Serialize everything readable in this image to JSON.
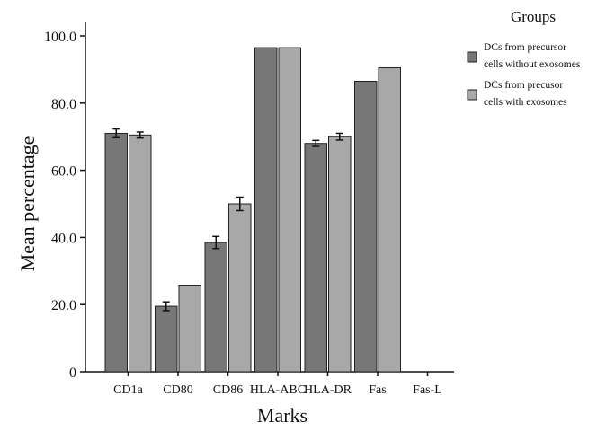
{
  "chart_data": {
    "type": "bar",
    "title": "",
    "xlabel": "Marks",
    "ylabel": "Mean percentage",
    "ylim": [
      0,
      100
    ],
    "yticks": [
      0,
      20,
      40,
      60,
      80,
      100
    ],
    "ytick_labels": [
      "0",
      "20.0",
      "40.0",
      "60.0",
      "80.0",
      "100.0"
    ],
    "categories": [
      "CD1a",
      "CD80",
      "CD86",
      "HLA-ABC",
      "HLA-DR",
      "Fas",
      "Fas-L"
    ],
    "legend": {
      "title": "Groups",
      "placement": "top-right"
    },
    "series": [
      {
        "name_lines": [
          "DCs from precursor",
          "cells without exosomes"
        ],
        "color": "#777777",
        "values": [
          71.0,
          19.5,
          38.5,
          96.5,
          68.0,
          86.5,
          0
        ],
        "errors": [
          1.3,
          1.3,
          1.8,
          0,
          0.9,
          0,
          0
        ]
      },
      {
        "name_lines": [
          "DCs from precusor",
          "cells with exosomes"
        ],
        "color": "#a8a8a8",
        "values": [
          70.5,
          25.8,
          50.0,
          96.5,
          70.0,
          90.5,
          0
        ],
        "errors": [
          0.9,
          0,
          2.0,
          0,
          1.0,
          0,
          0
        ]
      }
    ]
  }
}
